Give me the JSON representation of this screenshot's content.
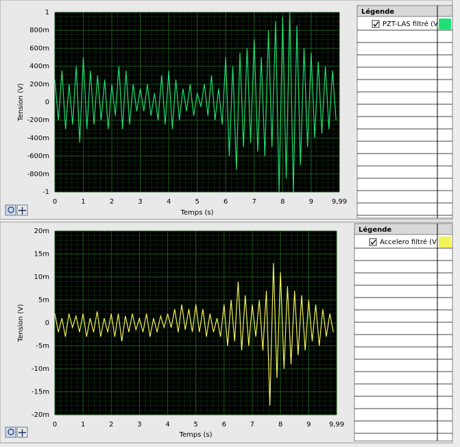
{
  "chart_data": [
    {
      "type": "line",
      "x_label": "Temps (s)",
      "y_label": "Tension (V)",
      "legend_title": "Légende",
      "plot_background": "#000000",
      "grid": true,
      "grid_color": "#1d5a1d",
      "xlim": [
        0,
        9.99
      ],
      "ylim": [
        -1,
        1
      ],
      "xticks": [
        0,
        1,
        2,
        3,
        4,
        5,
        6,
        7,
        8,
        9,
        {
          "value": 9.99,
          "label": "9,99"
        }
      ],
      "yticks": [
        {
          "value": 1,
          "label": "1"
        },
        {
          "value": 0.8,
          "label": "800m"
        },
        {
          "value": 0.6,
          "label": "600m"
        },
        {
          "value": 0.4,
          "label": "400m"
        },
        {
          "value": 0.2,
          "label": "200m"
        },
        0,
        {
          "value": -0.2,
          "label": "-200m"
        },
        {
          "value": -0.4,
          "label": "-400m"
        },
        {
          "value": -0.6,
          "label": "-600m"
        },
        {
          "value": -0.8,
          "label": "-800m"
        },
        -1
      ],
      "x": [
        0,
        0.125,
        0.25,
        0.375,
        0.5,
        0.625,
        0.75,
        0.875,
        1,
        1.125,
        1.25,
        1.375,
        1.5,
        1.625,
        1.75,
        1.875,
        2,
        2.125,
        2.25,
        2.375,
        2.5,
        2.625,
        2.75,
        2.875,
        3,
        3.125,
        3.25,
        3.375,
        3.5,
        3.625,
        3.75,
        3.875,
        4,
        4.125,
        4.25,
        4.375,
        4.5,
        4.625,
        4.75,
        4.875,
        5,
        5.125,
        5.25,
        5.375,
        5.5,
        5.625,
        5.75,
        5.875,
        6,
        6.125,
        6.25,
        6.375,
        6.5,
        6.625,
        6.75,
        6.875,
        7,
        7.125,
        7.25,
        7.375,
        7.5,
        7.625,
        7.75,
        7.875,
        8,
        8.125,
        8.25,
        8.375,
        8.5,
        8.625,
        8.75,
        8.875,
        9,
        9.125,
        9.25,
        9.375,
        9.5,
        9.625,
        9.75,
        9.875
      ],
      "series": [
        {
          "name": "PZT-LAS filtré (V",
          "color": "#1fe074",
          "values": [
            0.25,
            -0.2,
            0.35,
            -0.3,
            0.2,
            -0.25,
            0.4,
            -0.45,
            0.5,
            -0.3,
            0.35,
            -0.25,
            0.3,
            -0.2,
            0.25,
            -0.3,
            0.2,
            -0.15,
            0.4,
            -0.3,
            0.35,
            -0.25,
            0.2,
            -0.1,
            0.15,
            -0.1,
            0.2,
            -0.15,
            0.1,
            -0.2,
            0.3,
            -0.25,
            0.35,
            -0.3,
            0.25,
            -0.2,
            0.15,
            -0.1,
            0.2,
            -0.15,
            0.1,
            -0.05,
            0.2,
            -0.15,
            0.3,
            -0.2,
            0.15,
            -0.25,
            0.5,
            -0.6,
            0.4,
            -0.75,
            0.55,
            -0.5,
            0.6,
            -0.45,
            0.7,
            -0.55,
            0.5,
            -0.6,
            0.8,
            -0.5,
            0.9,
            -1,
            0.95,
            -0.85,
            1,
            -1,
            0.85,
            -0.7,
            0.6,
            -0.5,
            0.55,
            -0.4,
            0.45,
            -0.35,
            0.4,
            -0.3,
            0.35,
            -0.2
          ]
        }
      ]
    },
    {
      "type": "line",
      "x_label": "Temps (s)",
      "y_label": "Tension (V)",
      "legend_title": "Légende",
      "plot_background": "#000000",
      "grid": true,
      "grid_color": "#1d5a1d",
      "xlim": [
        0,
        9.99
      ],
      "ylim": [
        -0.02,
        0.02
      ],
      "xticks": [
        0,
        1,
        2,
        3,
        4,
        5,
        6,
        7,
        8,
        9,
        {
          "value": 9.99,
          "label": "9,99"
        }
      ],
      "yticks": [
        {
          "value": 0.02,
          "label": "20m"
        },
        {
          "value": 0.015,
          "label": "15m"
        },
        {
          "value": 0.01,
          "label": "10m"
        },
        {
          "value": 0.005,
          "label": "5m"
        },
        0,
        {
          "value": -0.005,
          "label": "-5m"
        },
        {
          "value": -0.01,
          "label": "-10m"
        },
        {
          "value": -0.015,
          "label": "-15m"
        },
        {
          "value": -0.02,
          "label": "-20m"
        }
      ],
      "x": [
        0,
        0.125,
        0.25,
        0.375,
        0.5,
        0.625,
        0.75,
        0.875,
        1,
        1.125,
        1.25,
        1.375,
        1.5,
        1.625,
        1.75,
        1.875,
        2,
        2.125,
        2.25,
        2.375,
        2.5,
        2.625,
        2.75,
        2.875,
        3,
        3.125,
        3.25,
        3.375,
        3.5,
        3.625,
        3.75,
        3.875,
        4,
        4.125,
        4.25,
        4.375,
        4.5,
        4.625,
        4.75,
        4.875,
        5,
        5.125,
        5.25,
        5.375,
        5.5,
        5.625,
        5.75,
        5.875,
        6,
        6.125,
        6.25,
        6.375,
        6.5,
        6.625,
        6.75,
        6.875,
        7,
        7.125,
        7.25,
        7.375,
        7.5,
        7.625,
        7.75,
        7.875,
        8,
        8.125,
        8.25,
        8.375,
        8.5,
        8.625,
        8.75,
        8.875,
        9,
        9.125,
        9.25,
        9.375,
        9.5,
        9.625,
        9.75,
        9.875
      ],
      "series": [
        {
          "name": "Accelero filtré (V",
          "color": "#f4f25a",
          "values": [
            0.002,
            -0.002,
            0.001,
            -0.003,
            0.002,
            -0.001,
            0.0015,
            -0.002,
            0.002,
            -0.003,
            0.001,
            -0.002,
            0.0025,
            -0.003,
            0.001,
            -0.002,
            0.002,
            -0.003,
            0.002,
            -0.004,
            0.0015,
            -0.002,
            0.002,
            -0.0015,
            0.001,
            -0.002,
            0.002,
            -0.003,
            0.001,
            -0.002,
            0.0015,
            -0.001,
            0.002,
            -0.001,
            0.003,
            -0.002,
            0.004,
            -0.0015,
            0.003,
            -0.002,
            0.004,
            -0.002,
            0.003,
            -0.003,
            0.002,
            -0.002,
            0.001,
            -0.003,
            0.004,
            -0.005,
            0.005,
            -0.004,
            0.009,
            -0.006,
            0.006,
            -0.005,
            0.004,
            -0.003,
            0.005,
            -0.006,
            0.007,
            -0.018,
            0.013,
            -0.012,
            0.011,
            -0.01,
            0.008,
            -0.009,
            0.007,
            -0.007,
            0.006,
            -0.006,
            0.005,
            -0.004,
            0.004,
            -0.005,
            0.003,
            -0.003,
            0.002,
            -0.002
          ]
        }
      ]
    }
  ]
}
